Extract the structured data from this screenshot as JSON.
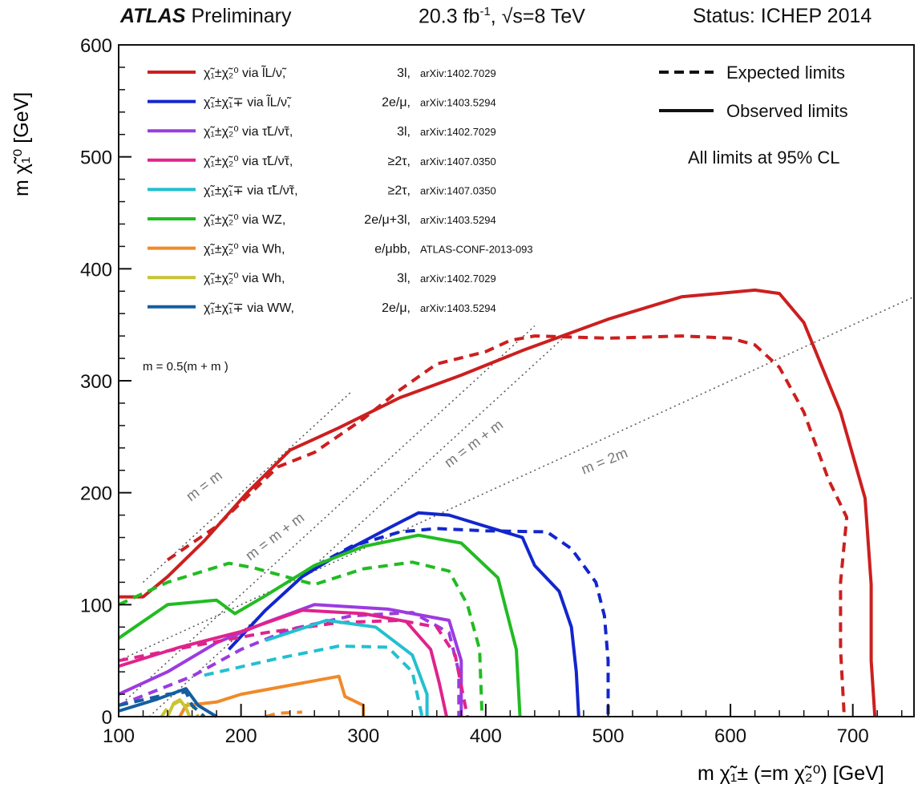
{
  "header": {
    "atlas": "ATLAS",
    "preliminary": "Preliminary",
    "lumi": "20.3 fb",
    "lumi_sup": "-1",
    "energy": ", √s=8 TeV",
    "status": "Status: ICHEP 2014"
  },
  "side_legend": {
    "expected": "Expected limits",
    "observed": "Observed limits",
    "cl": "All limits at 95% CL"
  },
  "kinematic_labels": {
    "slepton_mass": "m  = 0.5(m  + m )",
    "diag_equal": "m  = m",
    "diag_z": "m  = m  + m",
    "diag_h": "m  = m  + m",
    "diag_2x": "m  = 2m"
  },
  "chart_data": {
    "type": "line",
    "xlabel": "m χ̃₁± (=m χ̃₂⁰) [GeV]",
    "ylabel": "m χ̃₁⁰ [GeV]",
    "xlim": [
      100,
      750
    ],
    "ylim": [
      0,
      600
    ],
    "x_ticks": [
      100,
      200,
      300,
      400,
      500,
      600,
      700
    ],
    "y_ticks": [
      0,
      100,
      200,
      300,
      400,
      500,
      600
    ],
    "diagonals": [
      {
        "slope": 1,
        "offset": 0,
        "x_range": [
          120,
          290
        ]
      },
      {
        "slope": 1,
        "offset": -91,
        "x_range": [
          100,
          440
        ]
      },
      {
        "slope": 1,
        "offset": -125,
        "x_range": [
          100,
          470
        ]
      },
      {
        "slope": 0.5,
        "offset": 0,
        "x_range": [
          100,
          750
        ]
      }
    ],
    "series": [
      {
        "name": "χ̃₁±χ̃₂⁰ via l̃L/ν̃, 3l, arXiv:1402.7029",
        "color": "#cc1f1f",
        "process": "χ̃₁±χ̃₂⁰ via l̃L/ν̃,",
        "channel": "3l,",
        "ref": "arXiv:1402.7029",
        "observed": [
          [
            100,
            107
          ],
          [
            120,
            107
          ],
          [
            140,
            125
          ],
          [
            170,
            157
          ],
          [
            205,
            200
          ],
          [
            240,
            238
          ],
          [
            280,
            258
          ],
          [
            330,
            285
          ],
          [
            380,
            305
          ],
          [
            430,
            327
          ],
          [
            500,
            355
          ],
          [
            560,
            375
          ],
          [
            620,
            381
          ],
          [
            640,
            378
          ],
          [
            660,
            352
          ],
          [
            690,
            272
          ],
          [
            710,
            195
          ],
          [
            715,
            118
          ],
          [
            715,
            50
          ],
          [
            718,
            0
          ]
        ],
        "expected": [
          [
            140,
            140
          ],
          [
            180,
            170
          ],
          [
            230,
            223
          ],
          [
            260,
            236
          ],
          [
            300,
            266
          ],
          [
            330,
            292
          ],
          [
            360,
            315
          ],
          [
            400,
            326
          ],
          [
            420,
            336
          ],
          [
            440,
            340
          ],
          [
            500,
            338
          ],
          [
            560,
            340
          ],
          [
            600,
            338
          ],
          [
            620,
            332
          ],
          [
            640,
            312
          ],
          [
            660,
            272
          ],
          [
            680,
            212
          ],
          [
            695,
            178
          ],
          [
            690,
            120
          ],
          [
            690,
            60
          ],
          [
            693,
            0
          ]
        ]
      },
      {
        "name": "χ̃₁±χ̃₁∓ via l̃L/ν̃, 2e/μ, arXiv:1403.5294",
        "color": "#1226cc",
        "process": "χ̃₁±χ̃₁∓ via l̃L/ν̃,",
        "channel": "2e/μ,",
        "ref": "arXiv:1403.5294",
        "observed": [
          [
            190,
            60
          ],
          [
            220,
            95
          ],
          [
            250,
            125
          ],
          [
            280,
            145
          ],
          [
            320,
            168
          ],
          [
            345,
            182
          ],
          [
            370,
            180
          ],
          [
            400,
            170
          ],
          [
            430,
            160
          ],
          [
            440,
            135
          ],
          [
            460,
            112
          ],
          [
            470,
            80
          ],
          [
            474,
            40
          ],
          [
            476,
            0
          ]
        ],
        "expected": [
          [
            250,
            128
          ],
          [
            290,
            152
          ],
          [
            330,
            165
          ],
          [
            360,
            168
          ],
          [
            400,
            166
          ],
          [
            450,
            165
          ],
          [
            470,
            150
          ],
          [
            490,
            120
          ],
          [
            497,
            90
          ],
          [
            500,
            50
          ],
          [
            500,
            0
          ]
        ]
      },
      {
        "name": "χ̃₁±χ̃₂⁰ via τ̃L/ν̃τ, 3l, arXiv:1402.7029",
        "color": "#9b3be0",
        "process": "χ̃₁±χ̃₂⁰ via τ̃L/ν̃τ,",
        "channel": "3l,",
        "ref": "arXiv:1402.7029",
        "observed": [
          [
            100,
            20
          ],
          [
            140,
            40
          ],
          [
            180,
            66
          ],
          [
            220,
            84
          ],
          [
            260,
            100
          ],
          [
            320,
            96
          ],
          [
            370,
            86
          ],
          [
            380,
            50
          ],
          [
            380,
            0
          ]
        ],
        "expected": [
          [
            100,
            10
          ],
          [
            160,
            36
          ],
          [
            200,
            60
          ],
          [
            240,
            78
          ],
          [
            290,
            90
          ],
          [
            340,
            93
          ],
          [
            370,
            75
          ],
          [
            378,
            40
          ],
          [
            378,
            0
          ]
        ]
      },
      {
        "name": "χ̃₁±χ̃₂⁰ via τ̃L/ν̃τ, ≥2τ, arXiv:1407.0350",
        "color": "#e0238c",
        "process": "χ̃₁±χ̃₂⁰ via τ̃L/ν̃τ,",
        "channel": "≥2τ,",
        "ref": "arXiv:1407.0350",
        "observed": [
          [
            100,
            45
          ],
          [
            150,
            62
          ],
          [
            200,
            76
          ],
          [
            250,
            95
          ],
          [
            300,
            92
          ],
          [
            335,
            85
          ],
          [
            355,
            60
          ],
          [
            362,
            30
          ],
          [
            368,
            0
          ]
        ],
        "expected": [
          [
            100,
            50
          ],
          [
            160,
            63
          ],
          [
            220,
            75
          ],
          [
            280,
            84
          ],
          [
            330,
            86
          ],
          [
            360,
            80
          ],
          [
            375,
            55
          ],
          [
            385,
            0
          ]
        ]
      },
      {
        "name": "χ̃₁±χ̃₁∓ via τ̃L/ν̃τ, ≥2τ, arXiv:1407.0350",
        "color": "#22c0d0",
        "process": "χ̃₁±χ̃₁∓ via τ̃L/ν̃τ,",
        "channel": "≥2τ,",
        "ref": "arXiv:1407.0350",
        "observed": [
          [
            220,
            68
          ],
          [
            270,
            86
          ],
          [
            310,
            80
          ],
          [
            340,
            55
          ],
          [
            352,
            20
          ],
          [
            352,
            0
          ]
        ],
        "expected": [
          [
            170,
            37
          ],
          [
            230,
            52
          ],
          [
            280,
            63
          ],
          [
            320,
            62
          ],
          [
            340,
            40
          ],
          [
            348,
            0
          ]
        ]
      },
      {
        "name": "χ̃₁±χ̃₂⁰ via WZ, 2e/μ+3l, arXiv:1403.5294",
        "color": "#22bb22",
        "process": "χ̃₁±χ̃₂⁰ via WZ,",
        "channel": "2e/μ+3l,",
        "ref": "arXiv:1403.5294",
        "observed": [
          [
            100,
            70
          ],
          [
            140,
            100
          ],
          [
            180,
            104
          ],
          [
            195,
            92
          ],
          [
            220,
            108
          ],
          [
            260,
            135
          ],
          [
            300,
            152
          ],
          [
            345,
            162
          ],
          [
            380,
            155
          ],
          [
            410,
            124
          ],
          [
            425,
            60
          ],
          [
            428,
            0
          ]
        ],
        "expected": [
          [
            100,
            100
          ],
          [
            140,
            120
          ],
          [
            190,
            137
          ],
          [
            210,
            133
          ],
          [
            260,
            118
          ],
          [
            300,
            132
          ],
          [
            340,
            138
          ],
          [
            370,
            130
          ],
          [
            385,
            100
          ],
          [
            395,
            60
          ],
          [
            397,
            0
          ]
        ]
      },
      {
        "name": "χ̃₁±χ̃₂⁰ via Wh, e/μbb, ATLAS-CONF-2013-093",
        "color": "#f08a2a",
        "process": "χ̃₁±χ̃₂⁰ via Wh,",
        "channel": "e/μbb,",
        "ref": "ATLAS-CONF-2013-093",
        "observed": [
          [
            150,
            0
          ],
          [
            155,
            10
          ],
          [
            180,
            13
          ],
          [
            200,
            20
          ],
          [
            240,
            28
          ],
          [
            280,
            36
          ],
          [
            285,
            18
          ],
          [
            300,
            10
          ],
          [
            300,
            0
          ]
        ],
        "expected": [
          [
            220,
            0
          ],
          [
            230,
            3
          ],
          [
            250,
            4
          ]
        ]
      },
      {
        "name": "χ̃₁±χ̃₂⁰ via Wh, 3l, arXiv:1402.7029",
        "color": "#c9c430",
        "process": "χ̃₁±χ̃₂⁰ via Wh,",
        "channel": "3l,",
        "ref": "arXiv:1402.7029",
        "observed": [
          [
            140,
            0
          ],
          [
            145,
            12
          ],
          [
            150,
            15
          ],
          [
            155,
            8
          ],
          [
            158,
            0
          ]
        ],
        "expected": [
          [
            135,
            0
          ],
          [
            140,
            8
          ],
          [
            150,
            14
          ],
          [
            160,
            10
          ],
          [
            165,
            0
          ]
        ]
      },
      {
        "name": "χ̃₁±χ̃₁∓ via WW, 2e/μ, arXiv:1403.5294",
        "color": "#155ea0",
        "process": "χ̃₁±χ̃₁∓ via WW,",
        "channel": "2e/μ,",
        "ref": "arXiv:1403.5294",
        "observed": [
          [
            100,
            5
          ],
          [
            130,
            15
          ],
          [
            155,
            25
          ],
          [
            165,
            10
          ],
          [
            180,
            0
          ]
        ],
        "expected": [
          [
            100,
            10
          ],
          [
            140,
            20
          ],
          [
            155,
            22
          ],
          [
            160,
            10
          ],
          [
            170,
            0
          ]
        ]
      }
    ]
  }
}
